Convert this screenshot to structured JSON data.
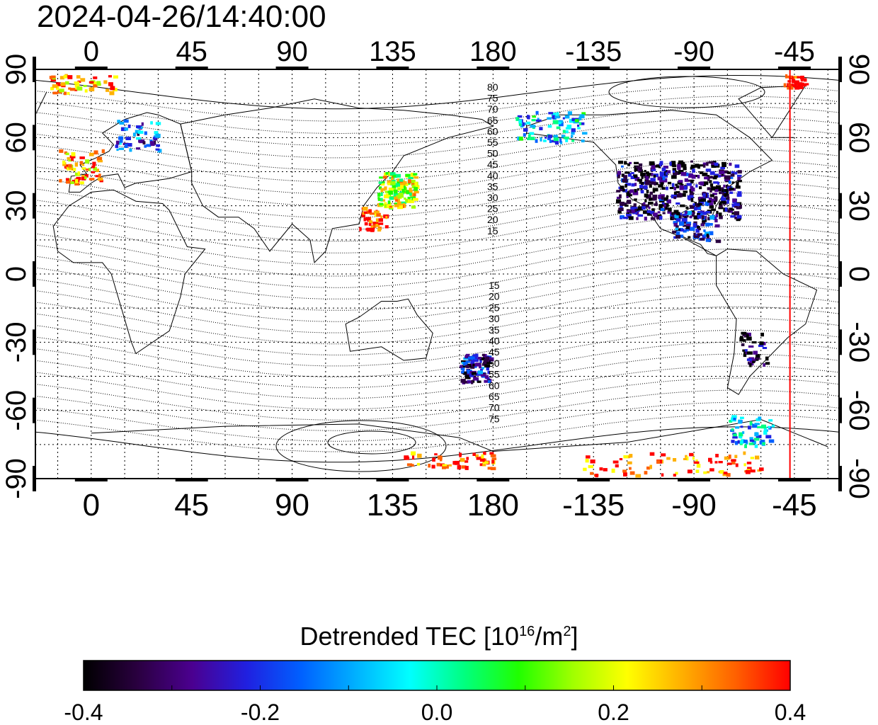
{
  "timestamp": "2024-04-26/14:40:00",
  "map": {
    "lon_ticks": [
      "0",
      "45",
      "90",
      "135",
      "180",
      "-135",
      "-90",
      "-45"
    ],
    "lat_ticks": [
      "90",
      "60",
      "30",
      "0",
      "-30",
      "-60",
      "-90"
    ],
    "north_contour_labels": [
      "80",
      "75",
      "70",
      "65",
      "60",
      "55",
      "50",
      "45",
      "40",
      "35",
      "30",
      "25",
      "20",
      "15"
    ],
    "south_contour_labels": [
      "15",
      "20",
      "25",
      "30",
      "35",
      "40",
      "45",
      "50",
      "55",
      "60",
      "65",
      "70",
      "75"
    ],
    "terminator_color": "#ff0000",
    "terminator_longitude": -47
  },
  "colorbar": {
    "title_prefix": "Detrended TEC  [10",
    "title_exp1": "16",
    "title_mid": "/m",
    "title_exp2": "2",
    "title_suffix": "]",
    "min": -0.4,
    "max": 0.4,
    "labels": [
      "-0.4",
      "-0.2",
      "0.0",
      "0.2",
      "0.4"
    ],
    "colormap": [
      "#000000",
      "#2a0040",
      "#4b0090",
      "#2020e0",
      "#0060ff",
      "#00b0ff",
      "#00ffff",
      "#00ff80",
      "#20ff00",
      "#a0ff00",
      "#ffff00",
      "#ffb000",
      "#ff6000",
      "#ff0000"
    ]
  }
}
